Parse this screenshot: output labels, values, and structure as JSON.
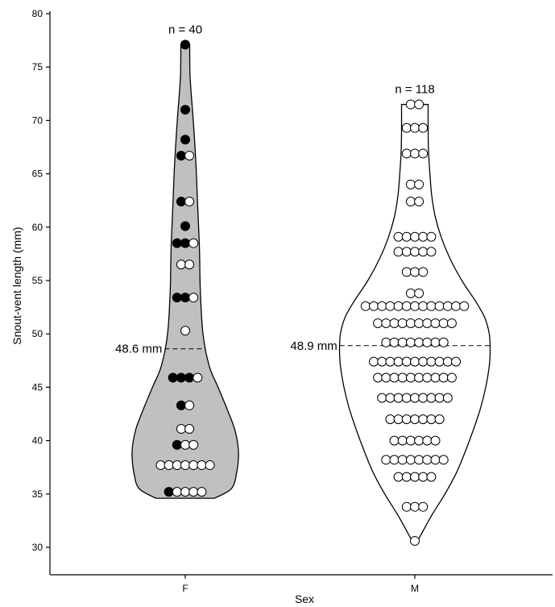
{
  "chart_data": {
    "type": "violin",
    "title": "",
    "xlabel": "Sex",
    "ylabel": "Snout-vent length (mm)",
    "ylim": [
      29,
      80
    ],
    "yticks": [
      30,
      35,
      40,
      45,
      50,
      55,
      60,
      65,
      70,
      75,
      80
    ],
    "categories": [
      "F",
      "M"
    ],
    "grid": false,
    "colors": {
      "F_fill": "#c0c0c0",
      "M_fill": "#ffffff",
      "outline": "#000000",
      "dot_filled": "#000000",
      "dot_open": "#ffffff"
    },
    "groups": [
      {
        "category": "F",
        "n_label": "n = 40",
        "mean_label": "48.6 mm",
        "mean": 48.6,
        "min": 34.6,
        "max": 77.1,
        "fill": "#c0c0c0",
        "dot_rows": [
          {
            "y": 77.1,
            "filled": 1,
            "open": 0
          },
          {
            "y": 71.0,
            "filled": 1,
            "open": 0
          },
          {
            "y": 68.2,
            "filled": 1,
            "open": 0
          },
          {
            "y": 66.7,
            "filled": 1,
            "open": 1
          },
          {
            "y": 62.4,
            "filled": 1,
            "open": 1
          },
          {
            "y": 60.1,
            "filled": 1,
            "open": 0
          },
          {
            "y": 58.5,
            "filled": 2,
            "open": 1
          },
          {
            "y": 56.5,
            "filled": 0,
            "open": 2
          },
          {
            "y": 53.4,
            "filled": 2,
            "open": 1
          },
          {
            "y": 50.3,
            "filled": 0,
            "open": 1
          },
          {
            "y": 45.9,
            "filled": 3,
            "open": 1
          },
          {
            "y": 43.3,
            "filled": 1,
            "open": 1
          },
          {
            "y": 41.1,
            "filled": 0,
            "open": 2
          },
          {
            "y": 39.6,
            "filled": 1,
            "open": 2
          },
          {
            "y": 37.7,
            "filled": 0,
            "open": 7
          },
          {
            "y": 35.2,
            "filled": 1,
            "open": 4
          }
        ],
        "density": [
          {
            "y": 34.6,
            "w": 0.33
          },
          {
            "y": 35.5,
            "w": 0.52
          },
          {
            "y": 37.0,
            "w": 0.58
          },
          {
            "y": 39.0,
            "w": 0.6
          },
          {
            "y": 41.0,
            "w": 0.56
          },
          {
            "y": 43.0,
            "w": 0.47
          },
          {
            "y": 45.0,
            "w": 0.37
          },
          {
            "y": 47.0,
            "w": 0.27
          },
          {
            "y": 50.0,
            "w": 0.2
          },
          {
            "y": 54.0,
            "w": 0.17
          },
          {
            "y": 58.0,
            "w": 0.16
          },
          {
            "y": 62.0,
            "w": 0.14
          },
          {
            "y": 66.0,
            "w": 0.12
          },
          {
            "y": 70.0,
            "w": 0.09
          },
          {
            "y": 74.0,
            "w": 0.055
          },
          {
            "y": 77.1,
            "w": 0.05
          }
        ]
      },
      {
        "category": "M",
        "n_label": "n = 118",
        "mean_label": "48.9 mm",
        "mean": 48.9,
        "min": 30.6,
        "max": 71.5,
        "fill": "#ffffff",
        "dot_rows": [
          {
            "y": 71.5,
            "filled": 0,
            "open": 2
          },
          {
            "y": 69.3,
            "filled": 0,
            "open": 3
          },
          {
            "y": 66.9,
            "filled": 0,
            "open": 3
          },
          {
            "y": 64.0,
            "filled": 0,
            "open": 2
          },
          {
            "y": 62.4,
            "filled": 0,
            "open": 2
          },
          {
            "y": 59.1,
            "filled": 0,
            "open": 5
          },
          {
            "y": 57.7,
            "filled": 0,
            "open": 5
          },
          {
            "y": 55.8,
            "filled": 0,
            "open": 3
          },
          {
            "y": 53.8,
            "filled": 0,
            "open": 2
          },
          {
            "y": 52.6,
            "filled": 0,
            "open": 13
          },
          {
            "y": 51.0,
            "filled": 0,
            "open": 10
          },
          {
            "y": 49.2,
            "filled": 0,
            "open": 8
          },
          {
            "y": 47.4,
            "filled": 0,
            "open": 11
          },
          {
            "y": 45.9,
            "filled": 0,
            "open": 10
          },
          {
            "y": 44.0,
            "filled": 0,
            "open": 9
          },
          {
            "y": 42.0,
            "filled": 0,
            "open": 7
          },
          {
            "y": 40.0,
            "filled": 0,
            "open": 6
          },
          {
            "y": 38.2,
            "filled": 0,
            "open": 8
          },
          {
            "y": 36.6,
            "filled": 0,
            "open": 5
          },
          {
            "y": 33.8,
            "filled": 0,
            "open": 3
          },
          {
            "y": 30.6,
            "filled": 0,
            "open": 1
          }
        ],
        "density": [
          {
            "y": 30.6,
            "w": 0.03
          },
          {
            "y": 31.5,
            "w": 0.09
          },
          {
            "y": 33.0,
            "w": 0.19
          },
          {
            "y": 35.0,
            "w": 0.34
          },
          {
            "y": 37.0,
            "w": 0.47
          },
          {
            "y": 39.0,
            "w": 0.57
          },
          {
            "y": 41.0,
            "w": 0.66
          },
          {
            "y": 43.0,
            "w": 0.74
          },
          {
            "y": 45.0,
            "w": 0.8
          },
          {
            "y": 47.0,
            "w": 0.84
          },
          {
            "y": 48.5,
            "w": 0.85
          },
          {
            "y": 50.0,
            "w": 0.84
          },
          {
            "y": 51.5,
            "w": 0.79
          },
          {
            "y": 53.0,
            "w": 0.69
          },
          {
            "y": 55.0,
            "w": 0.53
          },
          {
            "y": 57.0,
            "w": 0.4
          },
          {
            "y": 59.0,
            "w": 0.3
          },
          {
            "y": 61.0,
            "w": 0.23
          },
          {
            "y": 63.0,
            "w": 0.19
          },
          {
            "y": 65.0,
            "w": 0.17
          },
          {
            "y": 67.0,
            "w": 0.155
          },
          {
            "y": 69.0,
            "w": 0.15
          },
          {
            "y": 71.0,
            "w": 0.15
          },
          {
            "y": 71.5,
            "w": 0.15
          }
        ]
      }
    ]
  }
}
